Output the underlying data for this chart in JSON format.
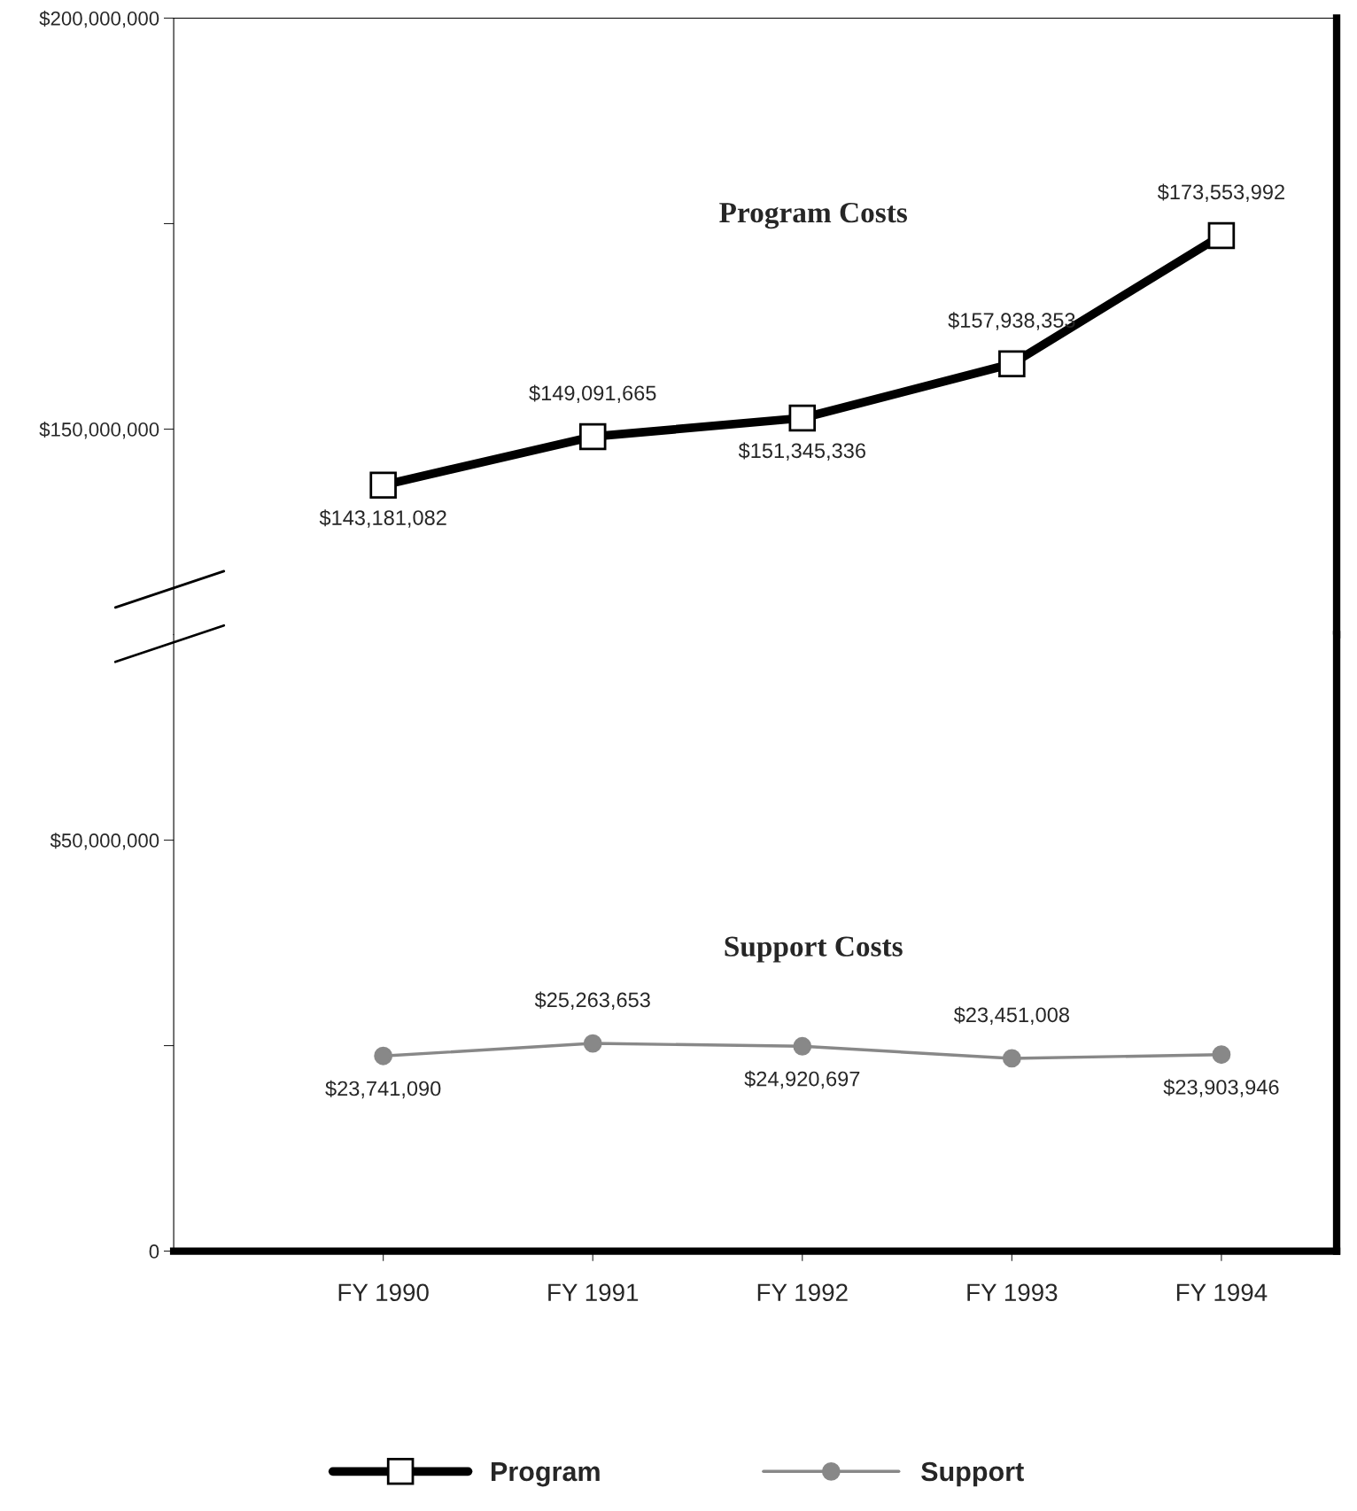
{
  "chart_data": [
    {
      "type": "line",
      "title": "Program Costs",
      "series": [
        {
          "name": "Program",
          "color": "#000000",
          "values": [
            143181082,
            149091665,
            151345336,
            157938353,
            173553992
          ],
          "value_labels": [
            "$143,181,082",
            "$149,091,665",
            "$151,345,336",
            "$157,938,353",
            "$173,553,992"
          ]
        }
      ],
      "ylim": [
        125000000,
        200000000
      ],
      "yticks": [
        {
          "value": 150000000,
          "label": "$150,000,000"
        },
        {
          "value": 175000000,
          "label": null
        },
        {
          "value": 200000000,
          "label": "$200,000,000"
        }
      ],
      "marker": "square",
      "tick_labels": "y",
      "legend": "bottom"
    },
    {
      "type": "line",
      "title": "Support Costs",
      "categories": [
        "FY 1990",
        "FY 1991",
        "FY 1992",
        "FY 1993",
        "FY 1994"
      ],
      "series": [
        {
          "name": "Support",
          "color": "#888888",
          "values": [
            23741090,
            25263653,
            24920697,
            23451008,
            23903946
          ],
          "value_labels": [
            "$23,741,090",
            "$25,263,653",
            "$24,920,697",
            "$23,451,008",
            "$23,903,946"
          ]
        }
      ],
      "ylim": [
        0,
        75000000
      ],
      "yticks": [
        0,
        {
          "value": 25000000,
          "label": null
        },
        {
          "value": 50000000,
          "label": "$50,000,000"
        }
      ],
      "marker": "circle",
      "legend": "bottom"
    }
  ]
}
